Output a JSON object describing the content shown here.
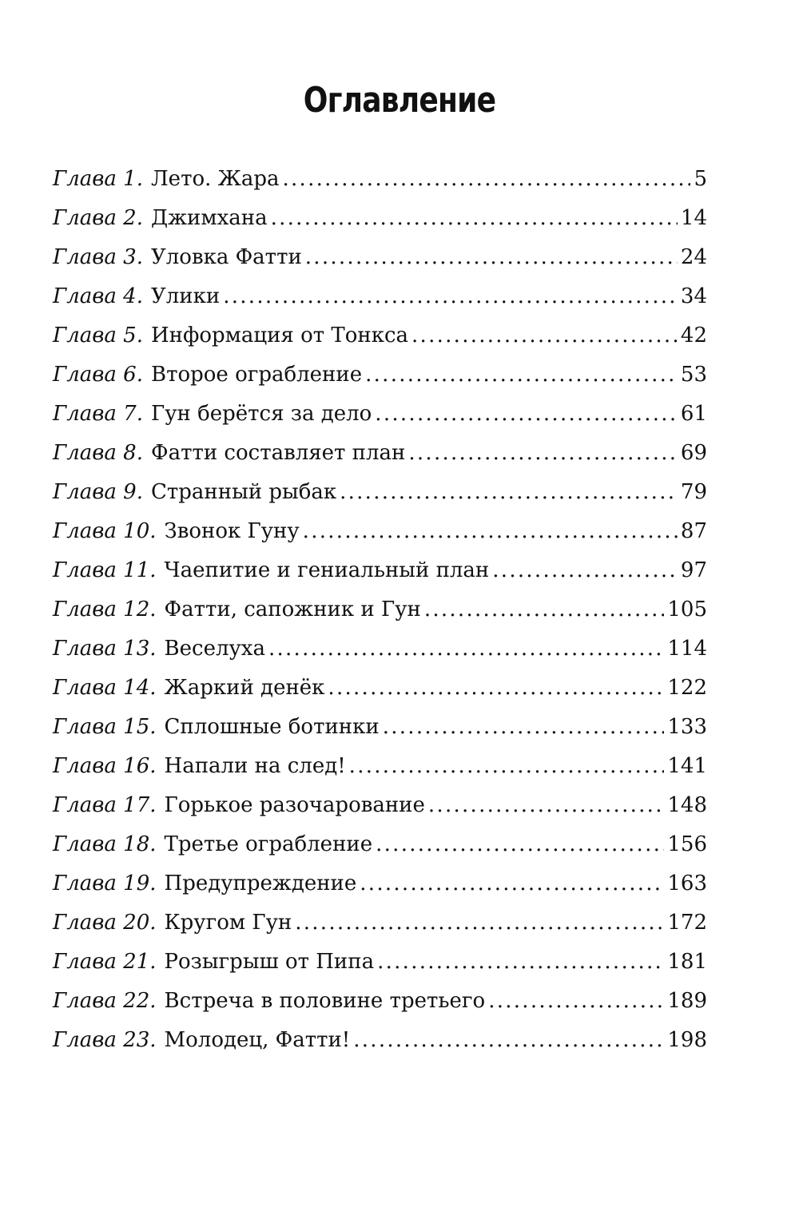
{
  "title": "Оглавление",
  "entries": [
    {
      "chapter": "Глава 1.",
      "name": "Лето. Жара",
      "page": "5"
    },
    {
      "chapter": "Глава 2.",
      "name": "Джимхана",
      "page": "14"
    },
    {
      "chapter": "Глава 3.",
      "name": "Уловка Фатти",
      "page": "24"
    },
    {
      "chapter": "Глава 4.",
      "name": "Улики",
      "page": "34"
    },
    {
      "chapter": "Глава 5.",
      "name": "Информация от Тонкса",
      "page": "42"
    },
    {
      "chapter": "Глава 6.",
      "name": "Второе ограбление",
      "page": "53"
    },
    {
      "chapter": "Глава 7.",
      "name": "Гун берётся за дело",
      "page": "61"
    },
    {
      "chapter": "Глава 8.",
      "name": "Фатти составляет план",
      "page": "69"
    },
    {
      "chapter": "Глава 9.",
      "name": "Странный рыбак",
      "page": "79"
    },
    {
      "chapter": "Глава 10.",
      "name": "Звонок Гуну",
      "page": "87"
    },
    {
      "chapter": "Глава 11.",
      "name": "Чаепитие и гениальный план",
      "page": "97"
    },
    {
      "chapter": "Глава 12.",
      "name": "Фатти, сапожник и Гун",
      "page": "105"
    },
    {
      "chapter": "Глава 13.",
      "name": "Веселуха",
      "page": "114"
    },
    {
      "chapter": "Глава 14.",
      "name": "Жаркий денёк",
      "page": "122"
    },
    {
      "chapter": "Глава 15.",
      "name": "Сплошные ботинки",
      "page": "133"
    },
    {
      "chapter": "Глава 16.",
      "name": "Напали на след!",
      "page": "141"
    },
    {
      "chapter": "Глава 17.",
      "name": "Горькое разочарование",
      "page": "148"
    },
    {
      "chapter": "Глава 18.",
      "name": "Третье ограбление",
      "page": "156"
    },
    {
      "chapter": "Глава 19.",
      "name": "Предупреждение",
      "page": "163"
    },
    {
      "chapter": "Глава 20.",
      "name": "Кругом Гун",
      "page": "172"
    },
    {
      "chapter": "Глава 21.",
      "name": "Розыгрыш от Пипа",
      "page": "181"
    },
    {
      "chapter": "Глава 22.",
      "name": "Встреча в половине третьего",
      "page": "189"
    },
    {
      "chapter": "Глава 23.",
      "name": "Молодец, Фатти!",
      "page": "198"
    }
  ]
}
